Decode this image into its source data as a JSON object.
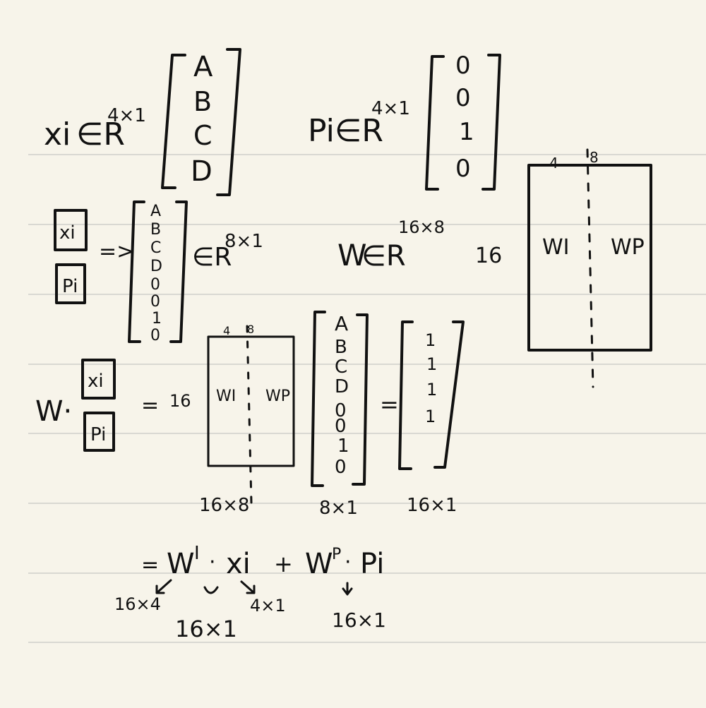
{
  "paper": {
    "background": "#f7f4ea",
    "rule_color": "#d9d8d2",
    "ink_color": "#111111"
  },
  "line1": {
    "x_def": {
      "var": "xi",
      "in_sym": "∈R",
      "dim": "4×1"
    },
    "x_vector": [
      "A",
      "B",
      "C",
      "D"
    ],
    "p_def": {
      "var": "Pi",
      "in_sym": "∈R",
      "dim": "4×1"
    },
    "p_vector": [
      "0",
      "0",
      "1",
      "0"
    ]
  },
  "line2": {
    "box_top": "xi",
    "box_bottom": "Pi",
    "arrow": "=>",
    "concat_vector": [
      "A",
      "B",
      "C",
      "D",
      "0",
      "0",
      "1",
      "0"
    ],
    "concat_in": "∈R",
    "concat_dim": "8×1",
    "w_def": {
      "var": "W",
      "in_sym": "∈R",
      "dim": "16×8"
    }
  },
  "big_matrix": {
    "rows_label": "16",
    "col4": "4",
    "col8": "8",
    "left_block": "WI",
    "right_block": "WP",
    "below_mark": "1"
  },
  "equation": {
    "w_dot": "W·",
    "box_top": "xi",
    "box_bottom": "Pi",
    "equals": "=",
    "rows_label": "16",
    "mat_col4": "4",
    "mat_col8": "8",
    "mat_left": "WI",
    "mat_right": "WP",
    "vector": [
      "A",
      "B",
      "C",
      "D",
      "0",
      "0",
      "1",
      "0"
    ],
    "result_equals": "=",
    "result_vector": [
      "1",
      "1",
      "1",
      "1"
    ],
    "dim_mat": "16×8",
    "dim_vec": "8×1",
    "dim_res": "16×1"
  },
  "decomposition": {
    "equals": "=",
    "term1_w": "W",
    "term1_sup": "I",
    "term1_dot": "·",
    "term1_x": "xi",
    "plus": "+",
    "term2_w": "W",
    "term2_sup": "P",
    "term2_dot": "·",
    "term2_p": "Pi",
    "ann_w_dim": "16×4",
    "ann_x_dim": "4×1",
    "ann_prod_dim": "16×1",
    "ann_term2_dim": "16×1"
  }
}
